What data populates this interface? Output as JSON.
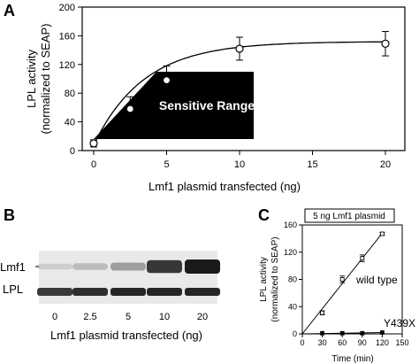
{
  "colors": {
    "ink": "#000000",
    "background": "#ffffff",
    "blot_band": "#1a1a1a",
    "blot_background": "#e9e9e9"
  },
  "panels": {
    "a": {
      "letter": "A"
    },
    "b": {
      "letter": "B"
    },
    "c": {
      "letter": "C"
    }
  },
  "chart_data": [
    {
      "panel": "A",
      "type": "scatter",
      "xlabel": "Lmf1 plasmid transfected (ng)",
      "ylabel": [
        "LPL activity",
        "(normalized to SEAP)"
      ],
      "xlim": [
        0,
        20
      ],
      "ylim": [
        0,
        200
      ],
      "xticks": [
        0,
        5,
        10,
        15,
        20
      ],
      "yticks": [
        0,
        40,
        80,
        120,
        160,
        200
      ],
      "x": [
        0,
        2.5,
        5,
        10,
        20
      ],
      "y": [
        10,
        58,
        98,
        142,
        149
      ],
      "error": [
        5,
        17,
        20,
        16,
        17
      ],
      "marker": "open-circle",
      "fit_curve": true,
      "annotation": "Sensitive Range"
    },
    {
      "panel": "B",
      "type": "blot",
      "row_labels": [
        "Lmf1",
        "LPL"
      ],
      "lane_labels": [
        "0",
        "2.5",
        "5",
        "10",
        "20"
      ],
      "xlabel": "Lmf1 plasmid transfected (ng)",
      "lmf1_intensity": [
        0.05,
        0.15,
        0.3,
        0.85,
        1.0
      ],
      "lpl_intensity": [
        0.85,
        0.9,
        0.95,
        0.95,
        0.95
      ]
    },
    {
      "panel": "C",
      "type": "line",
      "title": "5 ng Lmf1 plasmid",
      "xlabel": "Time (min)",
      "ylabel": [
        "LPL activity",
        "(normalized to SEAP)"
      ],
      "xlim": [
        0,
        150
      ],
      "ylim": [
        0,
        160
      ],
      "xticks": [
        0,
        30,
        60,
        90,
        120,
        150
      ],
      "xtick_labels": [
        "0",
        "30",
        "60",
        "90",
        "120",
        "150"
      ],
      "yticks": [
        0,
        40,
        80,
        120,
        160
      ],
      "series": [
        {
          "name": "wild type",
          "x": [
            30,
            60,
            90,
            120
          ],
          "y": [
            31,
            80,
            111,
            147
          ],
          "error": [
            3,
            5,
            5,
            2
          ],
          "marker": "open-square"
        },
        {
          "name": "Y439X",
          "x": [
            30,
            60,
            90,
            120
          ],
          "y": [
            1,
            1,
            1,
            2
          ],
          "error": [
            0,
            0,
            0,
            0
          ],
          "marker": "filled-square"
        }
      ]
    }
  ]
}
